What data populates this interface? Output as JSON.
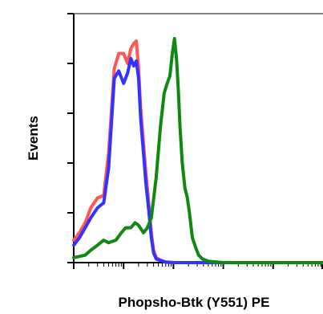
{
  "chart_data": {
    "type": "line",
    "title": "",
    "xlabel": "Phopsho-Btk (Y551) PE",
    "ylabel": "Events",
    "xscale": "log",
    "xlim": [
      1,
      100000
    ],
    "ylim": [
      0,
      100
    ],
    "grid": false,
    "legend": "none",
    "x_tick_labels": [],
    "y_tick_labels": [],
    "series": [
      {
        "color": "#ff5555",
        "x": [
          1,
          1.3,
          1.7,
          2.2,
          3,
          4,
          5,
          6.5,
          8,
          10,
          12,
          14,
          16,
          18,
          20,
          22,
          25,
          28,
          32,
          36,
          40,
          45,
          55,
          70,
          100,
          1000,
          100000
        ],
        "y": [
          9,
          12,
          16,
          22,
          26,
          27,
          44,
          78,
          84,
          84,
          80,
          86,
          88,
          89,
          78,
          62,
          48,
          36,
          24,
          12,
          5,
          2,
          1,
          0.3,
          0,
          0,
          0
        ]
      },
      {
        "color": "#3333ff",
        "x": [
          1,
          1.3,
          1.7,
          2.2,
          3,
          4,
          5,
          6.5,
          8,
          10,
          12,
          14,
          16,
          18,
          20,
          22,
          25,
          28,
          32,
          36,
          40,
          45,
          55,
          70,
          100,
          1000,
          100000
        ],
        "y": [
          7,
          10,
          14,
          18,
          22,
          24,
          38,
          74,
          77,
          72,
          76,
          82,
          79,
          81,
          74,
          58,
          44,
          32,
          21,
          10,
          4,
          1.5,
          0.8,
          0.2,
          0,
          0,
          0
        ]
      },
      {
        "color": "#118811",
        "x": [
          1,
          1.3,
          1.7,
          2.2,
          3,
          4,
          5,
          7,
          9,
          11,
          14,
          17,
          20,
          25,
          30,
          36,
          45,
          55,
          65,
          75,
          85,
          95,
          105,
          115,
          125,
          135,
          150,
          170,
          190,
          210,
          240,
          280,
          320,
          380,
          500,
          1000,
          100000
        ],
        "y": [
          2,
          2.5,
          3,
          5,
          7,
          9,
          8,
          9,
          12,
          14,
          14,
          16,
          15,
          12,
          14,
          18,
          34,
          55,
          68,
          72,
          75,
          84,
          90,
          82,
          70,
          55,
          40,
          30,
          26,
          20,
          10,
          6,
          3,
          1.5,
          0.5,
          0,
          0
        ]
      }
    ]
  }
}
